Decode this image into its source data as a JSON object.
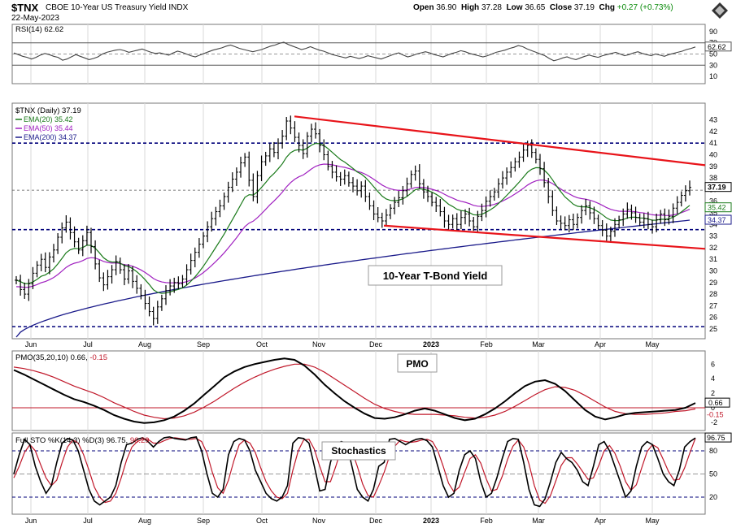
{
  "header": {
    "symbol": "$TNX",
    "description": "CBOE 10-Year US Treasury Yield INDX",
    "date": "22-May-2023",
    "open_label": "Open",
    "open": "36.90",
    "high_label": "High",
    "high": "37.28",
    "low_label": "Low",
    "low": "36.65",
    "close_label": "Close",
    "close": "37.19",
    "chg_label": "Chg",
    "chg": "+0.27 (+0.73%)"
  },
  "colors": {
    "price_bar": "#000000",
    "ema20": "#1a7a1a",
    "ema50": "#a020c0",
    "ema200": "#1a1a8a",
    "trendline": "#e8141a",
    "dashed_level": "#00007a",
    "rsi_line": "#444444",
    "rsi_fill": "#8a6a4a",
    "pmo_fast": "#000000",
    "pmo_signal": "#c0182a",
    "stoch_k": "#000000",
    "stoch_d": "#c0182a"
  },
  "annotations": {
    "main": "10-Year T-Bond Yield",
    "pmo": "PMO",
    "stoch": "Stochastics"
  },
  "chart_data": [
    {
      "type": "line",
      "panel": "RSI",
      "title": "RSI(14) 62.62",
      "ylim": [
        0,
        100
      ],
      "y_ticks": [
        10,
        30,
        50,
        70,
        90
      ],
      "last_value_label": "62.62",
      "reference_lines": [
        30,
        50,
        70
      ],
      "series": [
        {
          "values": [
            52,
            49,
            46,
            44,
            41,
            44,
            48,
            51,
            49,
            46,
            44,
            39,
            41,
            45,
            49,
            46,
            43,
            40,
            42,
            45,
            50,
            53,
            55,
            57,
            58,
            56,
            53,
            55,
            57,
            59,
            56,
            53,
            51,
            52,
            50,
            48,
            52,
            55,
            53,
            50,
            47,
            45,
            48,
            51,
            54,
            57,
            59,
            61,
            64,
            66,
            63,
            60,
            58,
            56,
            54,
            56,
            58,
            61,
            64,
            66,
            69,
            71,
            67,
            64,
            61,
            58,
            60,
            63,
            60,
            57,
            55,
            52,
            49,
            47,
            45,
            43,
            46,
            44,
            42,
            44,
            47,
            45,
            43,
            41,
            44,
            47,
            50,
            52,
            48,
            45,
            47,
            50,
            52,
            54,
            52,
            49,
            47,
            45,
            48,
            51,
            53,
            56,
            54,
            51,
            49,
            47,
            45,
            47,
            50,
            53,
            55,
            57,
            60,
            62,
            65,
            63,
            59,
            56,
            53,
            50,
            47,
            42,
            38,
            40,
            43,
            45,
            42,
            40,
            43,
            46,
            48,
            46,
            44,
            47,
            49,
            51,
            53,
            50,
            47,
            49,
            52,
            54,
            51,
            49,
            47,
            50,
            48,
            46,
            49,
            51,
            53,
            55,
            58,
            60,
            62.62
          ]
        }
      ]
    },
    {
      "type": "bar",
      "panel": "Price",
      "title": "$TNX (Daily) 37.19",
      "ylim": [
        24.3,
        44.3
      ],
      "y_ticks": [
        25,
        26,
        27,
        28,
        29,
        30,
        31,
        32,
        33,
        34,
        35,
        36,
        37,
        38,
        39,
        40,
        41,
        42,
        43
      ],
      "last_value_label": "37.19",
      "x_labels": [
        "Jun",
        "Jul",
        "Aug",
        "Sep",
        "Oct",
        "Nov",
        "Dec",
        "2023",
        "Feb",
        "Mar",
        "Apr",
        "May"
      ],
      "close": [
        29.2,
        28.4,
        28.0,
        28.9,
        29.8,
        30.5,
        31.0,
        30.3,
        31.2,
        31.8,
        32.9,
        33.7,
        34.2,
        33.3,
        32.5,
        31.8,
        32.6,
        33.3,
        32.1,
        30.6,
        29.4,
        28.8,
        29.5,
        30.1,
        30.8,
        30.1,
        29.3,
        30.0,
        29.1,
        28.5,
        27.9,
        27.2,
        26.5,
        25.9,
        26.9,
        27.6,
        28.3,
        28.7,
        29.0,
        28.9,
        29.3,
        30.1,
        30.9,
        31.6,
        32.3,
        33.0,
        33.8,
        34.5,
        35.1,
        35.6,
        36.4,
        37.2,
        37.9,
        38.5,
        39.3,
        39.8,
        37.8,
        36.4,
        38.2,
        39.4,
        39.9,
        40.5,
        40.2,
        41.0,
        41.6,
        42.9,
        42.3,
        41.5,
        40.8,
        40.1,
        41.6,
        42.2,
        41.8,
        40.8,
        40.0,
        39.0,
        38.5,
        38.1,
        37.9,
        38.2,
        37.6,
        37.3,
        36.9,
        37.3,
        36.4,
        35.6,
        34.9,
        34.6,
        34.3,
        34.8,
        35.4,
        35.9,
        36.3,
        36.9,
        37.5,
        38.3,
        38.6,
        37.5,
        36.8,
        36.4,
        35.9,
        35.6,
        35.1,
        34.3,
        34.0,
        34.5,
        34.0,
        34.6,
        34.9,
        34.3,
        33.8,
        34.7,
        35.2,
        36.0,
        36.4,
        36.8,
        37.5,
        38.0,
        38.5,
        38.9,
        39.4,
        39.8,
        40.4,
        40.8,
        40.2,
        39.6,
        38.8,
        37.6,
        36.4,
        35.2,
        34.3,
        34.1,
        33.9,
        34.4,
        34.0,
        34.6,
        35.2,
        35.6,
        35.0,
        34.5,
        33.9,
        33.5,
        33.0,
        33.4,
        34.0,
        34.4,
        34.9,
        35.3,
        35.0,
        34.6,
        34.2,
        34.5,
        34.0,
        33.8,
        34.4,
        34.9,
        34.4,
        34.7,
        35.4,
        35.9,
        36.5,
        36.9,
        37.19
      ]
    },
    {
      "type": "line",
      "panel": "PMO",
      "title": "PMO(35,20,10) 0.66, -0.15",
      "ylim": [
        -2.9,
        7.6
      ],
      "y_ticks": [
        -2,
        0,
        2,
        4,
        6
      ],
      "last_value_labels": [
        "0.66",
        "-0.15"
      ],
      "series": [
        {
          "name": "PMO",
          "values": [
            5.2,
            4.6,
            3.9,
            3.2,
            2.5,
            1.8,
            1.2,
            0.8,
            0.3,
            -0.3,
            -1.0,
            -1.5,
            -1.9,
            -2.1,
            -2.0,
            -1.7,
            -1.2,
            -0.4,
            0.6,
            1.8,
            3.0,
            4.2,
            5.0,
            5.6,
            6.0,
            6.3,
            6.6,
            6.8,
            6.6,
            5.8,
            4.6,
            3.2,
            2.0,
            0.9,
            0.0,
            -0.8,
            -1.4,
            -1.5,
            -1.3,
            -0.9,
            -0.4,
            -0.1,
            -0.4,
            -0.9,
            -1.4,
            -1.7,
            -1.5,
            -0.9,
            -0.1,
            0.9,
            2.0,
            3.0,
            3.6,
            3.8,
            3.3,
            2.3,
            1.0,
            -0.3,
            -1.2,
            -1.6,
            -1.3,
            -0.9,
            -0.7,
            -0.6,
            -0.5,
            -0.4,
            -0.3,
            0.0,
            0.66
          ]
        },
        {
          "name": "Signal",
          "values": [
            5.6,
            5.4,
            5.1,
            4.7,
            4.2,
            3.6,
            3.0,
            2.5,
            2.0,
            1.4,
            0.7,
            0.1,
            -0.5,
            -1.0,
            -1.3,
            -1.5,
            -1.4,
            -1.1,
            -0.6,
            0.1,
            0.9,
            1.8,
            2.7,
            3.5,
            4.2,
            4.8,
            5.3,
            5.7,
            6.0,
            6.0,
            5.6,
            4.9,
            4.0,
            3.1,
            2.2,
            1.3,
            0.5,
            -0.1,
            -0.5,
            -0.8,
            -0.9,
            -0.9,
            -0.9,
            -1.0,
            -1.1,
            -1.3,
            -1.4,
            -1.3,
            -1.0,
            -0.5,
            0.2,
            1.0,
            1.8,
            2.5,
            2.9,
            2.8,
            2.4,
            1.7,
            0.9,
            0.1,
            -0.5,
            -0.8,
            -0.9,
            -0.9,
            -0.8,
            -0.7,
            -0.5,
            -0.4,
            -0.15
          ]
        }
      ]
    },
    {
      "type": "line",
      "panel": "Stochastics",
      "title": "Full STO %K(14,3) %D(3) 96.75, 96.29",
      "ylim": [
        0,
        100
      ],
      "y_ticks": [
        20,
        50,
        80
      ],
      "last_value_labels": [
        "96.75"
      ],
      "reference_lines": [
        20,
        50,
        80
      ],
      "series": [
        {
          "name": "%K",
          "values": [
            50,
            75,
            95,
            88,
            60,
            40,
            25,
            35,
            65,
            90,
            96,
            94,
            80,
            55,
            30,
            15,
            10,
            15,
            20,
            35,
            65,
            88,
            90,
            95,
            97,
            92,
            85,
            92,
            97,
            98,
            96,
            95,
            94,
            97,
            98,
            80,
            50,
            25,
            20,
            30,
            75,
            92,
            96,
            94,
            80,
            55,
            40,
            25,
            18,
            15,
            20,
            35,
            90,
            97,
            96,
            90,
            60,
            28,
            30,
            65,
            88,
            92,
            90,
            60,
            30,
            20,
            15,
            30,
            60,
            65,
            95,
            96,
            92,
            88,
            92,
            95,
            96,
            93,
            85,
            60,
            35,
            20,
            25,
            55,
            75,
            80,
            70,
            40,
            20,
            25,
            45,
            70,
            92,
            96,
            95,
            65,
            30,
            10,
            8,
            18,
            40,
            65,
            78,
            70,
            65,
            55,
            40,
            35,
            60,
            88,
            92,
            80,
            60,
            40,
            20,
            28,
            60,
            85,
            92,
            88,
            70,
            50,
            40,
            35,
            55,
            85,
            92,
            96.75
          ]
        },
        {
          "name": "%D",
          "values": [
            45,
            60,
            78,
            88,
            80,
            62,
            45,
            35,
            42,
            65,
            85,
            94,
            90,
            75,
            55,
            33,
            20,
            13,
            15,
            25,
            45,
            68,
            85,
            92,
            95,
            95,
            90,
            90,
            93,
            96,
            97,
            96,
            95,
            95,
            96,
            92,
            77,
            52,
            32,
            25,
            42,
            67,
            88,
            94,
            90,
            78,
            58,
            40,
            28,
            20,
            18,
            25,
            55,
            80,
            94,
            95,
            82,
            60,
            40,
            40,
            60,
            82,
            90,
            80,
            60,
            37,
            22,
            20,
            35,
            52,
            73,
            86,
            94,
            92,
            91,
            92,
            94,
            95,
            92,
            80,
            60,
            38,
            27,
            33,
            52,
            70,
            75,
            64,
            44,
            28,
            30,
            47,
            69,
            86,
            94,
            85,
            63,
            35,
            16,
            12,
            22,
            41,
            61,
            71,
            71,
            63,
            53,
            43,
            45,
            61,
            80,
            87,
            77,
            60,
            40,
            29,
            36,
            58,
            79,
            88,
            84,
            69,
            53,
            42,
            43,
            58,
            78,
            96.29
          ]
        }
      ]
    }
  ],
  "dashed_levels_text": [
    "41",
    "33.5",
    "25.2"
  ]
}
